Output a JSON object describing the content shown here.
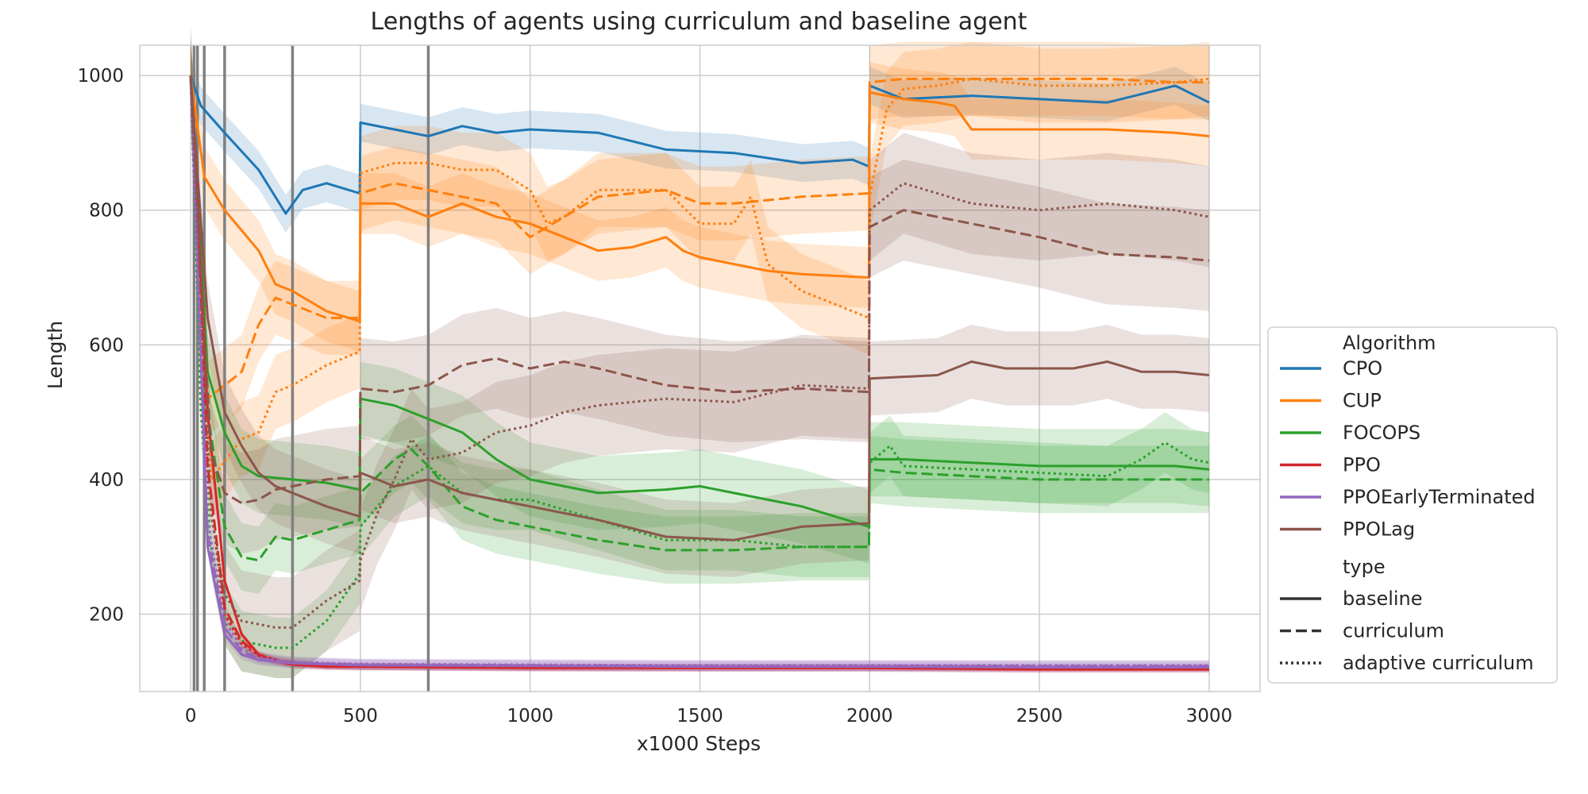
{
  "chart_data": {
    "type": "line",
    "title": "Lengths of agents using curriculum and baseline agent",
    "xlabel": "x1000 Steps",
    "ylabel": "Length",
    "xlim": [
      -150,
      3150
    ],
    "ylim": [
      85,
      1045
    ],
    "xticks": [
      0,
      500,
      1000,
      1500,
      2000,
      2500,
      3000
    ],
    "yticks": [
      200,
      400,
      600,
      800,
      1000
    ],
    "grid": true,
    "vertical_lines_x": [
      10,
      20,
      40,
      100,
      300,
      700
    ],
    "legend": {
      "placement": "right",
      "algorithm_title": "Algorithm",
      "type_title": "type",
      "types": [
        {
          "name": "baseline",
          "dash": "solid"
        },
        {
          "name": "curriculum",
          "dash": "dashed"
        },
        {
          "name": "adaptive curriculum",
          "dash": "dotted"
        }
      ]
    },
    "algorithms": [
      {
        "name": "CPO",
        "color": "#1f77b4"
      },
      {
        "name": "CUP",
        "color": "#ff7f0e"
      },
      {
        "name": "FOCOPS",
        "color": "#2ca02c"
      },
      {
        "name": "PPO",
        "color": "#d62728"
      },
      {
        "name": "PPOEarlyTerminated",
        "color": "#9467bd"
      },
      {
        "name": "PPOLag",
        "color": "#8c564b"
      }
    ],
    "series": [
      {
        "algorithm": "CPO",
        "type": "baseline",
        "band": 28,
        "x": [
          0,
          30,
          100,
          200,
          280,
          330,
          400,
          498,
          500,
          600,
          700,
          800,
          900,
          1000,
          1200,
          1400,
          1600,
          1800,
          1950,
          1998,
          2000,
          2100,
          2300,
          2500,
          2700,
          2900,
          3000
        ],
        "y": [
          1000,
          955,
          915,
          860,
          795,
          830,
          840,
          825,
          930,
          920,
          910,
          925,
          915,
          920,
          915,
          890,
          885,
          870,
          875,
          865,
          985,
          965,
          970,
          965,
          960,
          985,
          960
        ]
      },
      {
        "algorithm": "CUP",
        "type": "baseline",
        "band": 45,
        "x": [
          0,
          40,
          100,
          200,
          250,
          300,
          400,
          498,
          500,
          600,
          700,
          800,
          900,
          1000,
          1100,
          1200,
          1300,
          1400,
          1450,
          1500,
          1600,
          1700,
          1800,
          1998,
          2000,
          2100,
          2200,
          2250,
          2300,
          2500,
          2700,
          2900,
          3000
        ],
        "y": [
          1000,
          850,
          800,
          740,
          690,
          680,
          650,
          635,
          810,
          810,
          790,
          810,
          790,
          780,
          760,
          740,
          745,
          760,
          740,
          730,
          720,
          710,
          705,
          700,
          975,
          965,
          960,
          955,
          920,
          920,
          920,
          915,
          910
        ]
      },
      {
        "algorithm": "CUP",
        "type": "curriculum",
        "band": 55,
        "x": [
          0,
          50,
          150,
          200,
          250,
          300,
          400,
          498,
          500,
          600,
          700,
          800,
          900,
          1000,
          1100,
          1200,
          1400,
          1500,
          1600,
          1800,
          1998,
          2000,
          2100,
          2300,
          2500,
          2700,
          2900,
          3000
        ],
        "y": [
          1000,
          520,
          560,
          630,
          670,
          660,
          640,
          640,
          825,
          840,
          830,
          820,
          810,
          760,
          790,
          820,
          830,
          810,
          810,
          820,
          825,
          990,
          995,
          995,
          995,
          995,
          990,
          990
        ]
      },
      {
        "algorithm": "CUP",
        "type": "adaptive curriculum",
        "band": 55,
        "x": [
          0,
          60,
          150,
          200,
          250,
          300,
          400,
          498,
          500,
          600,
          700,
          800,
          900,
          1000,
          1050,
          1100,
          1200,
          1400,
          1500,
          1600,
          1650,
          1700,
          1800,
          1900,
          1998,
          2000,
          2050,
          2100,
          2200,
          2300,
          2500,
          2700,
          2900,
          3000
        ],
        "y": [
          1000,
          400,
          460,
          470,
          530,
          540,
          570,
          590,
          855,
          870,
          870,
          860,
          860,
          830,
          780,
          790,
          830,
          830,
          780,
          780,
          820,
          720,
          680,
          660,
          640,
          820,
          950,
          980,
          985,
          995,
          985,
          985,
          990,
          995
        ]
      },
      {
        "algorithm": "FOCOPS",
        "type": "baseline",
        "band": 55,
        "x": [
          0,
          50,
          100,
          150,
          200,
          300,
          400,
          498,
          500,
          600,
          700,
          800,
          900,
          1000,
          1200,
          1400,
          1500,
          1600,
          1800,
          1998,
          2000,
          2100,
          2300,
          2500,
          2700,
          2900,
          3000
        ],
        "y": [
          1000,
          560,
          470,
          420,
          405,
          400,
          395,
          385,
          520,
          510,
          490,
          470,
          430,
          400,
          380,
          385,
          390,
          380,
          360,
          330,
          430,
          430,
          425,
          420,
          420,
          420,
          415
        ]
      },
      {
        "algorithm": "FOCOPS",
        "type": "curriculum",
        "band": 50,
        "x": [
          0,
          50,
          100,
          150,
          200,
          250,
          300,
          400,
          498,
          500,
          600,
          650,
          700,
          800,
          900,
          1000,
          1200,
          1400,
          1600,
          1800,
          1998,
          2000,
          2100,
          2300,
          2500,
          2700,
          2900,
          3000
        ],
        "y": [
          1000,
          500,
          330,
          285,
          280,
          315,
          310,
          325,
          340,
          380,
          430,
          445,
          420,
          360,
          340,
          330,
          310,
          295,
          295,
          300,
          300,
          415,
          410,
          405,
          400,
          400,
          400,
          400
        ]
      },
      {
        "algorithm": "FOCOPS",
        "type": "adaptive curriculum",
        "band": 45,
        "x": [
          0,
          30,
          60,
          100,
          150,
          200,
          250,
          300,
          350,
          400,
          498,
          500,
          600,
          700,
          800,
          900,
          1000,
          1200,
          1400,
          1600,
          1800,
          1998,
          2000,
          2060,
          2100,
          2300,
          2500,
          2700,
          2800,
          2870,
          2950,
          3000
        ],
        "y": [
          1000,
          500,
          300,
          200,
          160,
          155,
          150,
          150,
          170,
          190,
          260,
          330,
          390,
          420,
          380,
          370,
          370,
          340,
          310,
          310,
          300,
          300,
          425,
          450,
          420,
          415,
          410,
          405,
          430,
          455,
          430,
          425
        ]
      },
      {
        "algorithm": "PPO",
        "type": "baseline",
        "band": 5,
        "x": [
          0,
          50,
          100,
          150,
          200,
          250,
          300,
          400,
          500,
          1000,
          1500,
          2000,
          2500,
          3000
        ],
        "y": [
          1000,
          500,
          250,
          170,
          140,
          130,
          125,
          122,
          122,
          120,
          120,
          120,
          118,
          118
        ]
      },
      {
        "algorithm": "PPO",
        "type": "curriculum",
        "band": 5,
        "x": [
          0,
          50,
          100,
          150,
          200,
          250,
          300,
          400,
          500,
          1000,
          1500,
          2000,
          2500,
          3000
        ],
        "y": [
          1000,
          420,
          210,
          160,
          140,
          132,
          128,
          124,
          123,
          121,
          121,
          121,
          120,
          120
        ]
      },
      {
        "algorithm": "PPO",
        "type": "adaptive curriculum",
        "band": 5,
        "x": [
          0,
          50,
          100,
          150,
          200,
          250,
          300,
          400,
          500,
          1000,
          1500,
          2000,
          2500,
          3000
        ],
        "y": [
          1000,
          400,
          200,
          155,
          138,
          130,
          126,
          123,
          122,
          121,
          121,
          121,
          120,
          120
        ]
      },
      {
        "algorithm": "PPOEarlyTerminated",
        "type": "baseline",
        "band": 8,
        "x": [
          0,
          50,
          100,
          150,
          200,
          300,
          500,
          1000,
          1500,
          2000,
          2500,
          3000
        ],
        "y": [
          1000,
          300,
          170,
          140,
          132,
          127,
          124,
          123,
          122,
          122,
          121,
          121
        ]
      },
      {
        "algorithm": "PPOEarlyTerminated",
        "type": "curriculum",
        "band": 8,
        "x": [
          0,
          50,
          100,
          150,
          200,
          300,
          500,
          1000,
          1500,
          2000,
          2500,
          3000
        ],
        "y": [
          1000,
          320,
          180,
          145,
          134,
          128,
          125,
          124,
          123,
          123,
          123,
          123
        ]
      },
      {
        "algorithm": "PPOEarlyTerminated",
        "type": "adaptive curriculum",
        "band": 8,
        "x": [
          0,
          50,
          100,
          150,
          200,
          300,
          500,
          1000,
          1500,
          2000,
          2500,
          3000
        ],
        "y": [
          1000,
          340,
          190,
          150,
          136,
          129,
          126,
          125,
          124,
          124,
          124,
          124
        ]
      },
      {
        "algorithm": "PPOLag",
        "type": "baseline",
        "band": 55,
        "x": [
          0,
          50,
          100,
          150,
          200,
          250,
          300,
          400,
          498,
          500,
          600,
          700,
          800,
          1000,
          1200,
          1400,
          1600,
          1800,
          1998,
          2000,
          2200,
          2300,
          2400,
          2600,
          2700,
          2800,
          2900,
          3000
        ],
        "y": [
          1000,
          640,
          500,
          450,
          410,
          390,
          380,
          360,
          345,
          410,
          390,
          400,
          380,
          360,
          340,
          315,
          310,
          330,
          335,
          550,
          555,
          575,
          565,
          565,
          575,
          560,
          560,
          555
        ]
      },
      {
        "algorithm": "PPOLag",
        "type": "curriculum",
        "band": 75,
        "x": [
          0,
          60,
          100,
          150,
          200,
          250,
          300,
          400,
          498,
          500,
          600,
          700,
          800,
          900,
          1000,
          1100,
          1200,
          1400,
          1600,
          1800,
          1998,
          2000,
          2100,
          2300,
          2500,
          2700,
          2900,
          3000
        ],
        "y": [
          1000,
          440,
          380,
          365,
          370,
          385,
          390,
          400,
          405,
          535,
          530,
          540,
          570,
          580,
          565,
          575,
          565,
          540,
          530,
          535,
          530,
          775,
          800,
          780,
          760,
          735,
          730,
          725
        ]
      },
      {
        "algorithm": "PPOLag",
        "type": "adaptive curriculum",
        "band": 75,
        "x": [
          0,
          60,
          100,
          150,
          200,
          250,
          300,
          350,
          400,
          498,
          500,
          550,
          600,
          650,
          700,
          800,
          900,
          1000,
          1100,
          1200,
          1400,
          1600,
          1800,
          1998,
          2000,
          2100,
          2300,
          2500,
          2700,
          2900,
          3000
        ],
        "y": [
          1000,
          350,
          230,
          190,
          185,
          180,
          180,
          200,
          220,
          250,
          280,
          350,
          400,
          460,
          430,
          440,
          470,
          480,
          500,
          510,
          520,
          515,
          540,
          535,
          800,
          840,
          810,
          800,
          810,
          800,
          790
        ]
      }
    ]
  }
}
